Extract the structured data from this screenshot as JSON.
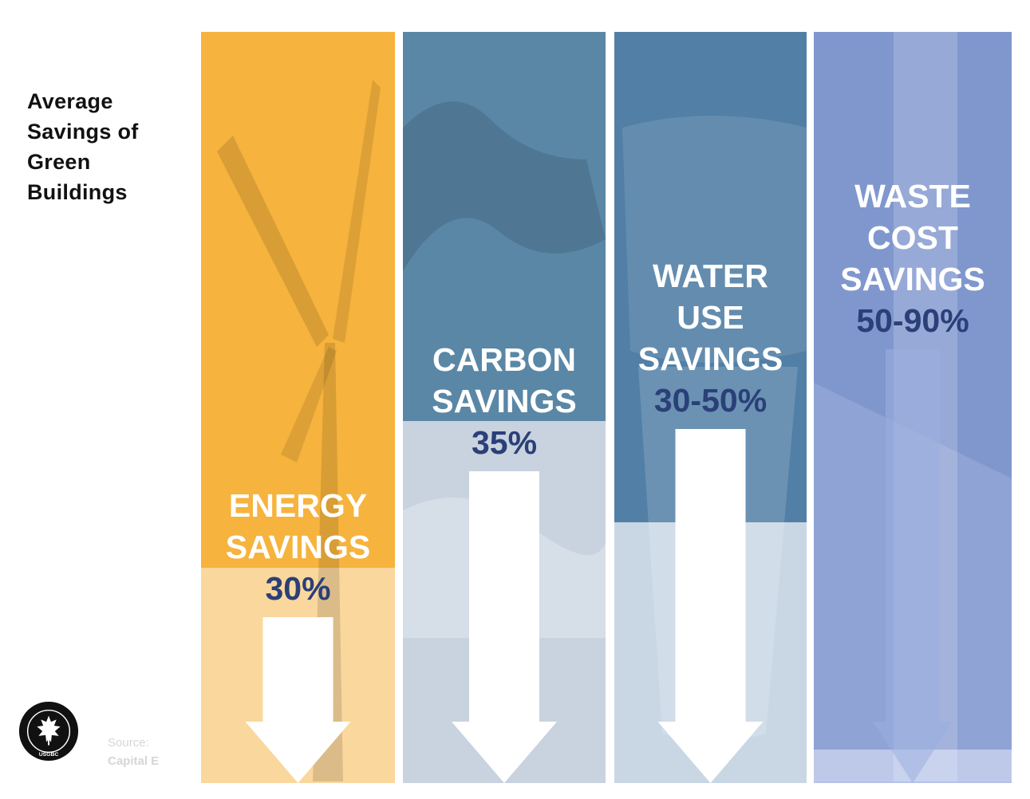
{
  "title_lines": [
    "Average",
    "Savings of",
    "Green",
    "Buildings"
  ],
  "chart_data": {
    "type": "bar",
    "orientation": "vertical",
    "categories": [
      "ENERGY SAVINGS",
      "CARBON SAVINGS",
      "WATER USE SAVINGS",
      "WASTE COST SAVINGS"
    ],
    "label_lines": [
      [
        "ENERGY",
        "SAVINGS"
      ],
      [
        "CARBON",
        "SAVINGS"
      ],
      [
        "WATER",
        "USE",
        "SAVINGS"
      ],
      [
        "WASTE",
        "COST",
        "SAVINGS"
      ]
    ],
    "values_text": [
      "30%",
      "35%",
      "30-50%",
      "50-90%"
    ],
    "values": [
      30,
      35,
      40,
      70
    ],
    "value_ranges": [
      [
        30,
        30
      ],
      [
        35,
        35
      ],
      [
        30,
        50
      ],
      [
        50,
        90
      ]
    ],
    "ylim": [
      0,
      100
    ],
    "direction": "downward",
    "title": "Average Savings of Green Buildings"
  },
  "colors": {
    "top": [
      "#f6b33d",
      "#5a87a6",
      "#527fa6",
      "#8097ce"
    ],
    "bottom": [
      "#fad79c",
      "#c8d3df",
      "#c9d7e4",
      "#b5c2e8"
    ],
    "value_text": "#2b3f78",
    "label_text": "#ffffff"
  },
  "source": {
    "prefix": "Source:",
    "name": "Capital E"
  },
  "logo": {
    "ring_text": "U.S. GREEN BUILDING COUNCIL",
    "initials": "USGBC"
  }
}
